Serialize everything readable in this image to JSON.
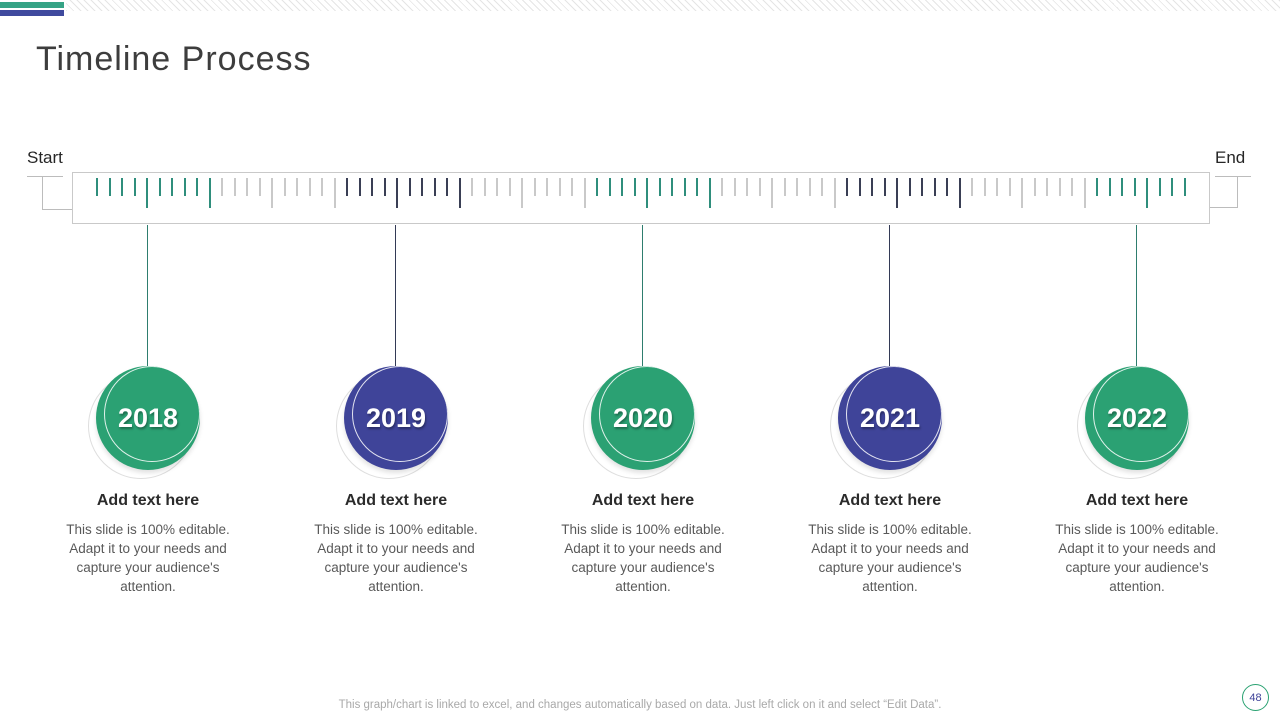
{
  "slide": {
    "title": "Timeline Process",
    "page_number": "48",
    "footer_note": "This graph/chart is linked to excel, and changes automatically based on data. Just left click on it and select “Edit Data”."
  },
  "colors": {
    "green_accent": "#2BA173",
    "purple_accent": "#3F4499",
    "top_bar_green": "#35A385",
    "top_bar_purple": "#3F4A9E",
    "page_badge_border": "#2AA272",
    "page_badge_text": "#3F4399"
  },
  "ruler": {
    "start_label": "Start",
    "end_label": "End",
    "tick_count": 88,
    "tick_spacing": 12.5,
    "first_tick_x": 23,
    "group_size": 10,
    "group_colors": [
      "#2F8E7C",
      "#C9C9C9",
      "#3A3F55",
      "#C9C9C9",
      "#2F8E7C",
      "#C9C9C9",
      "#3A3F55",
      "#C9C9C9",
      "#2F8E7C"
    ]
  },
  "milestones": [
    {
      "year": "2018",
      "color": "#2BA173",
      "line_color": "#2E7D6E",
      "heading": "Add text here",
      "body": "This slide is 100% editable. Adapt it to your needs and capture your audience's attention."
    },
    {
      "year": "2019",
      "color": "#3F4499",
      "line_color": "#333A56",
      "heading": "Add text here",
      "body": "This slide is 100% editable. Adapt it to your needs and capture your audience's attention."
    },
    {
      "year": "2020",
      "color": "#2BA173",
      "line_color": "#2E7D6E",
      "heading": "Add text here",
      "body": "This slide is 100% editable. Adapt it to your needs and capture your audience's attention."
    },
    {
      "year": "2021",
      "color": "#3F4499",
      "line_color": "#333A56",
      "heading": "Add text here",
      "body": "This slide is 100% editable. Adapt it to your needs and capture your audience's attention."
    },
    {
      "year": "2022",
      "color": "#2BA173",
      "line_color": "#2E7D6E",
      "heading": "Add text here",
      "body": "This slide is 100% editable. Adapt it to your needs and capture your audience's attention."
    }
  ]
}
